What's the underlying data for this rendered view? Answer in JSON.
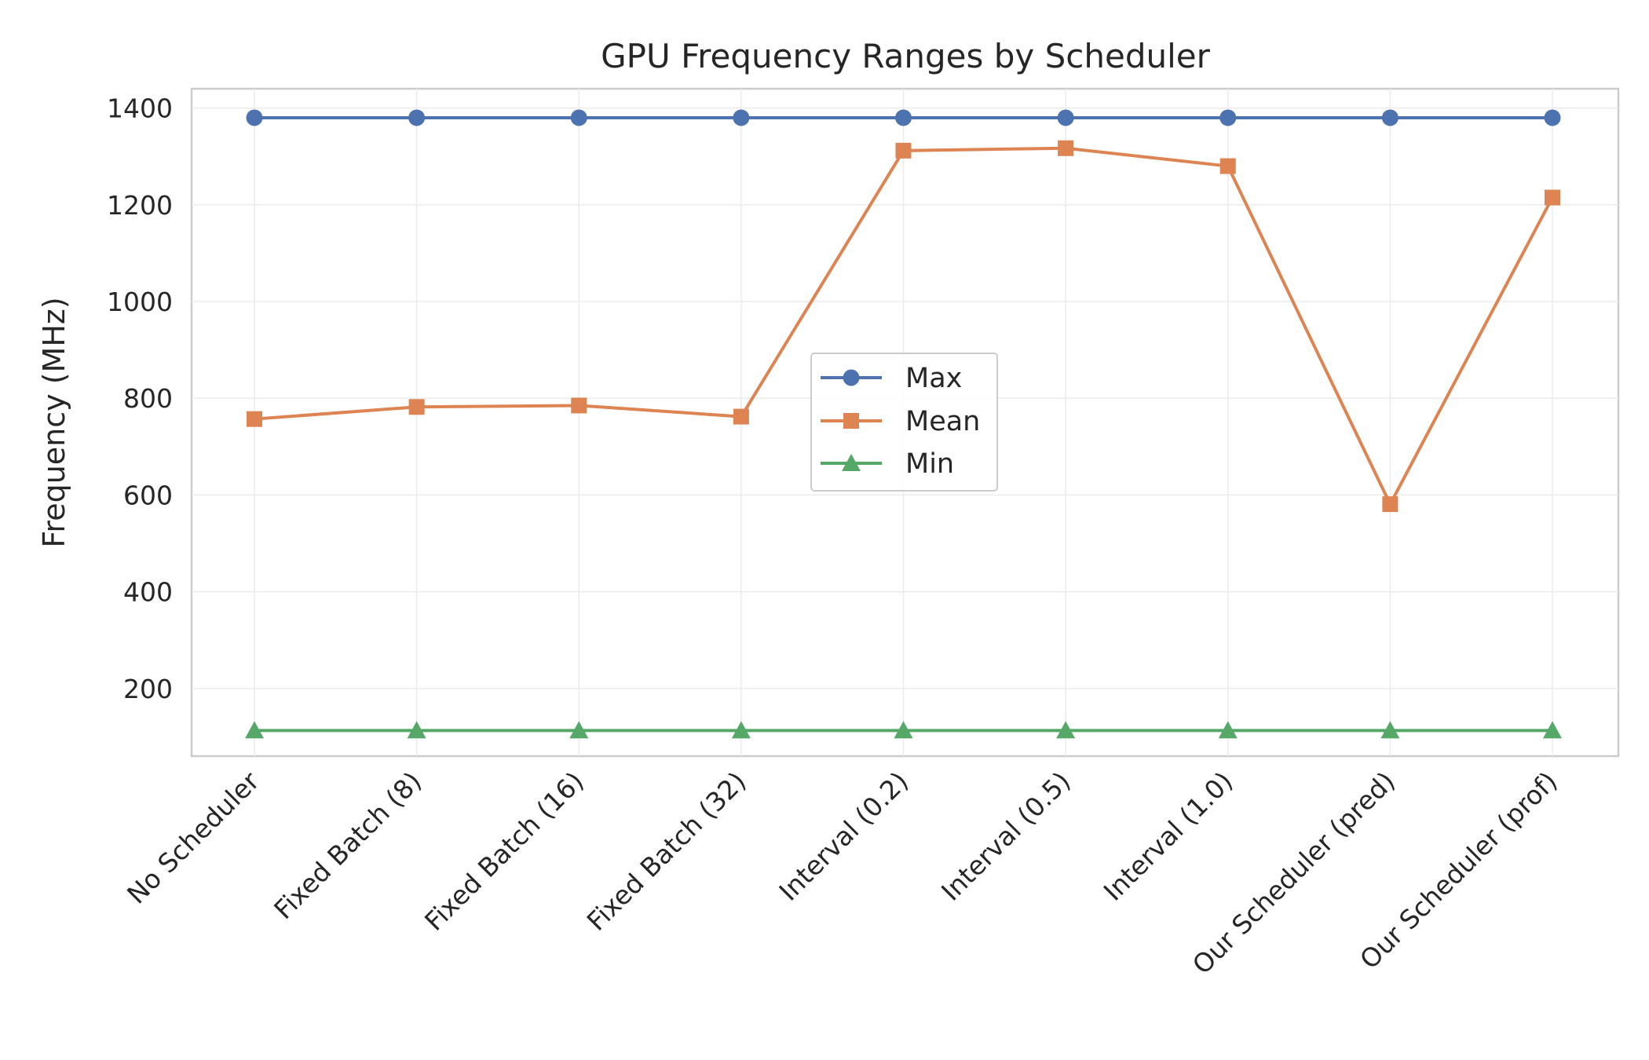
{
  "chart_data": {
    "type": "line",
    "title": "GPU Frequency Ranges by Scheduler",
    "xlabel": "",
    "ylabel": "Frequency (MHz)",
    "categories": [
      "No Scheduler",
      "Fixed Batch (8)",
      "Fixed Batch (16)",
      "Fixed Batch (32)",
      "Interval (0.2)",
      "Interval (0.5)",
      "Interval (1.0)",
      "Our Scheduler (pred)",
      "Our Scheduler (prof)"
    ],
    "ylim": [
      60,
      1440
    ],
    "yticks": [
      200,
      400,
      600,
      800,
      1000,
      1200,
      1400
    ],
    "grid": true,
    "legend_position": "center",
    "series": [
      {
        "name": "Max",
        "color": "#4c72b0",
        "marker": "circle",
        "values": [
          1380,
          1380,
          1380,
          1380,
          1380,
          1380,
          1380,
          1380,
          1380
        ]
      },
      {
        "name": "Mean",
        "color": "#dd8452",
        "marker": "square",
        "values": [
          757,
          782,
          785,
          762,
          1312,
          1317,
          1280,
          581,
          1215
        ]
      },
      {
        "name": "Min",
        "color": "#55a868",
        "marker": "triangle",
        "values": [
          113,
          113,
          113,
          113,
          113,
          113,
          113,
          113,
          113
        ]
      }
    ]
  }
}
